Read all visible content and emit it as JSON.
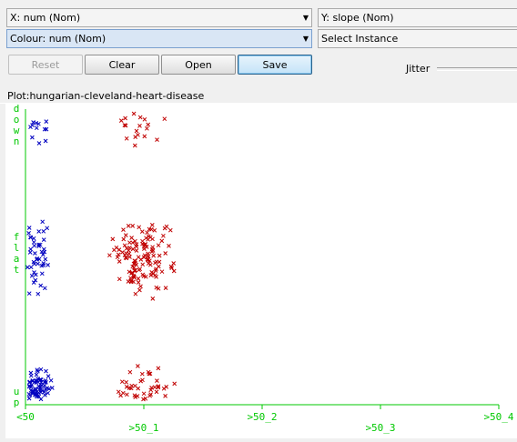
{
  "controls": {
    "x_axis": "X: num (Nom)",
    "y_axis": "Y: slope (Nom)",
    "colour": "Colour: num (Nom)",
    "instance": "Select Instance"
  },
  "buttons": {
    "reset": "Reset",
    "clear": "Clear",
    "open": "Open",
    "save": "Save"
  },
  "jitter_label": "Jitter",
  "plot_title": "Plot:hungarian-cleveland-heart-disease",
  "colors": {
    "class_lt50": "#0000c0",
    "class_gt50": "#c00000",
    "axis": "#00c800"
  },
  "chart_data": {
    "type": "scatter",
    "title": "",
    "x_categories": [
      "<50",
      ">50_1",
      ">50_2",
      ">50_3",
      ">50_4"
    ],
    "y_categories": [
      "up",
      "flat",
      "down"
    ],
    "marker": "x",
    "series": [
      {
        "name": "<50",
        "x_category": "<50",
        "counts": {
          "up": 65,
          "flat": 45,
          "down": 12
        }
      },
      {
        "name": ">50_1",
        "x_category": ">50_1",
        "counts": {
          "up": 40,
          "flat": 130,
          "down": 18
        }
      }
    ]
  }
}
